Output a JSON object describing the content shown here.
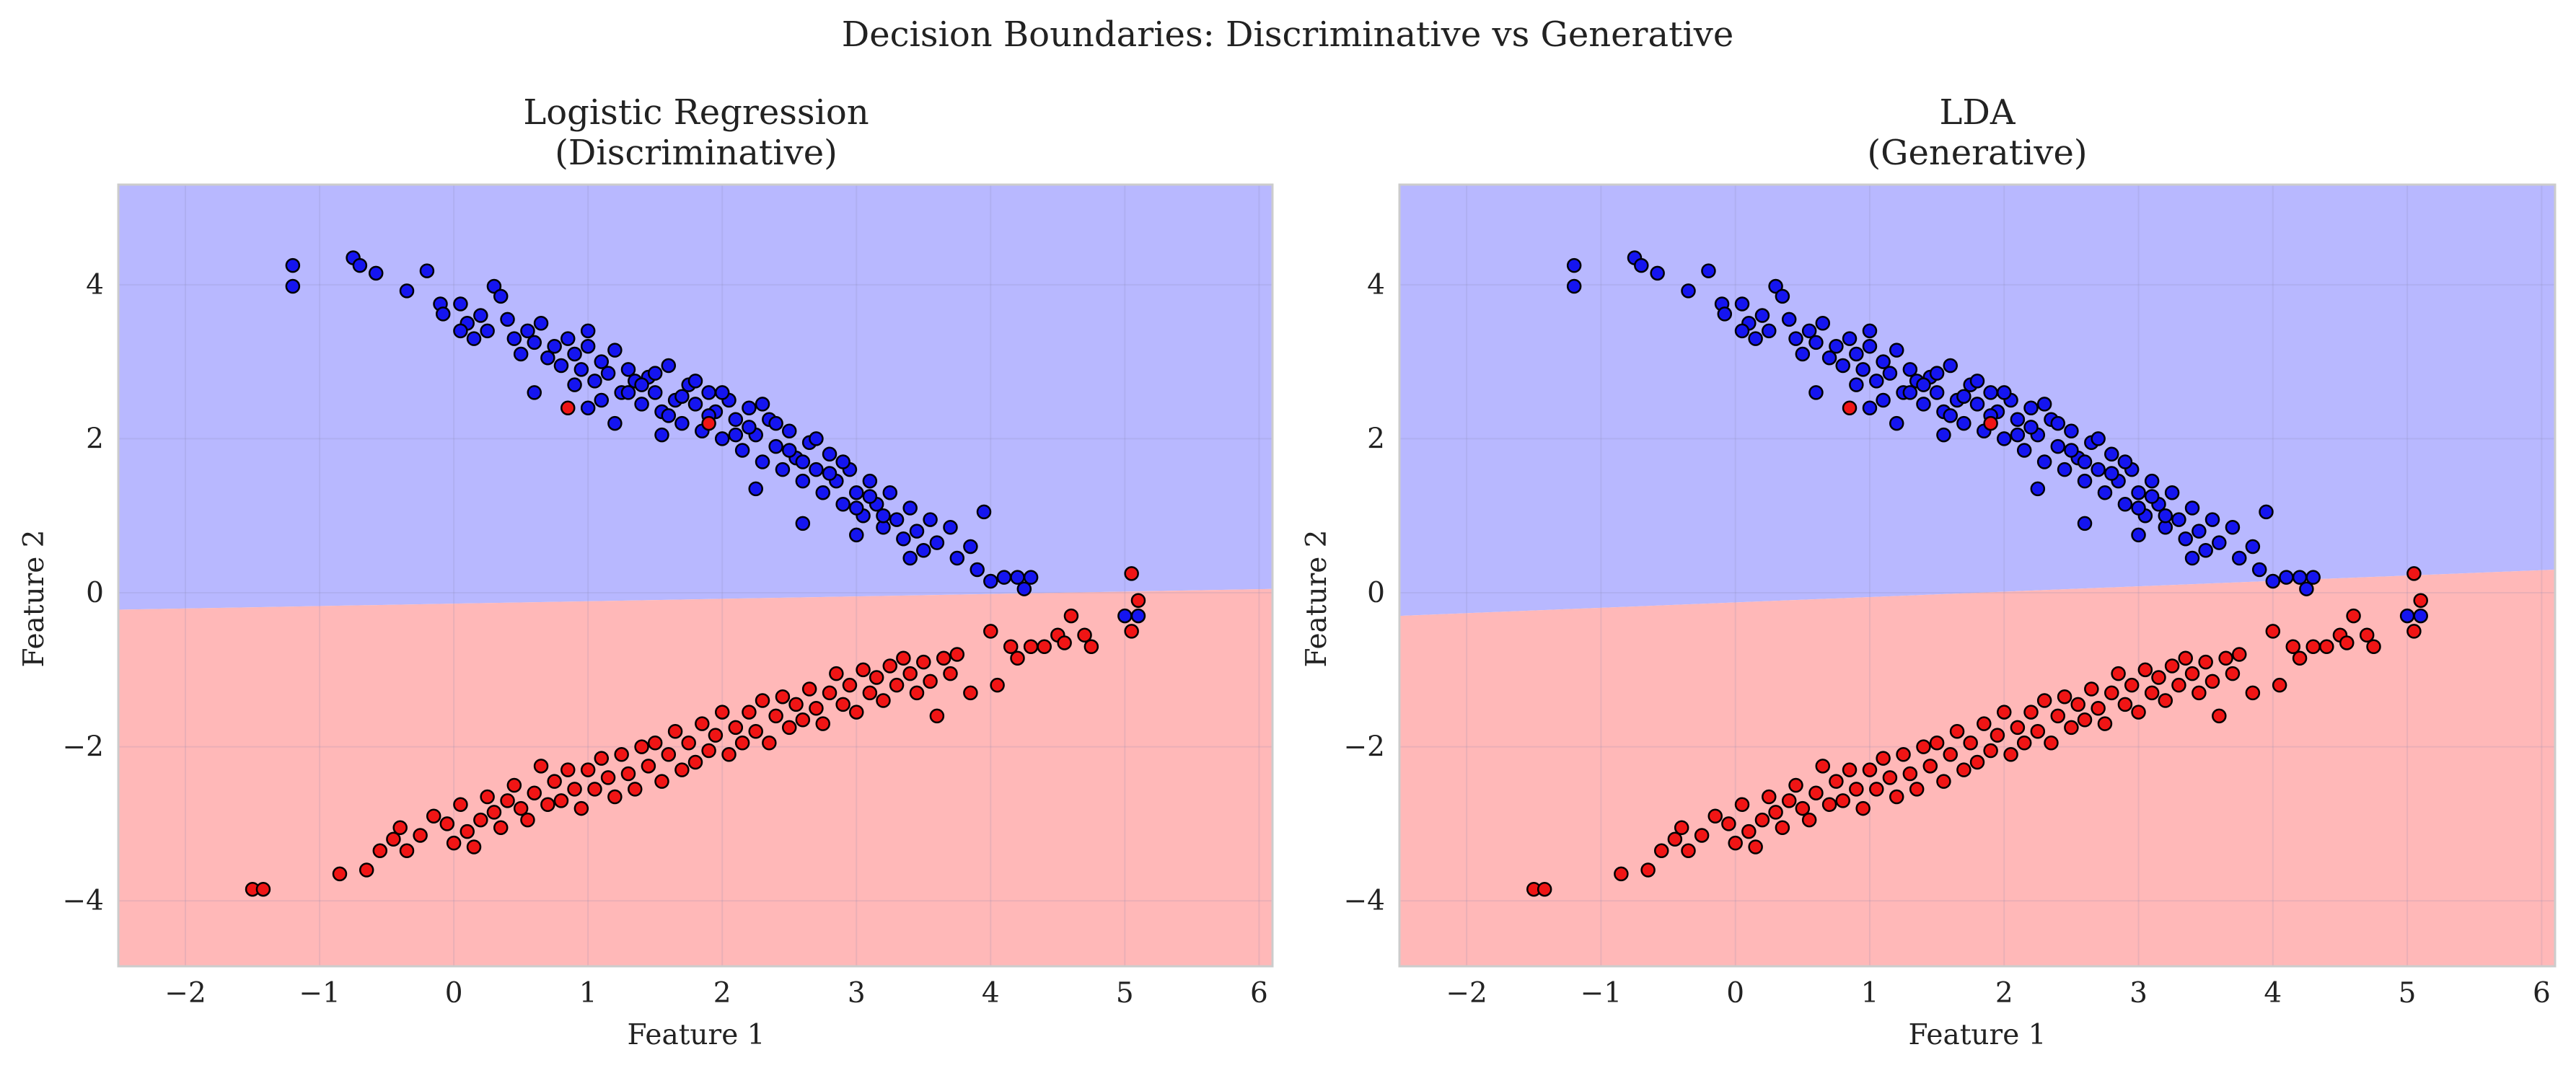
{
  "figure": {
    "suptitle": "Decision Boundaries: Discriminative vs Generative"
  },
  "colors": {
    "region_class0": "#b8b8ff",
    "region_class1": "#ffb8b8",
    "point_class0": "#1515f0",
    "point_class1": "#f01515",
    "point_edge": "#000000",
    "grid": "#d8d8e8",
    "spine": "#cccccc"
  },
  "chart_data": [
    {
      "type": "scatter",
      "title_line1": "Logistic Regression",
      "title_line2": "(Discriminative)",
      "xlabel": "Feature 1",
      "ylabel": "Feature 2",
      "xlim": [
        -2.5,
        6.1
      ],
      "ylim": [
        -4.85,
        5.3
      ],
      "xticks": [
        -2,
        -1,
        0,
        1,
        2,
        3,
        4,
        5,
        6
      ],
      "yticks": [
        -4,
        -2,
        0,
        2,
        4
      ],
      "grid": true,
      "decision_boundary": {
        "x": [
          -2.5,
          6.1
        ],
        "y": [
          -0.22,
          0.05
        ]
      },
      "regions": {
        "above": "class 0 (blue)",
        "below": "class 1 (red)"
      }
    },
    {
      "type": "scatter",
      "title_line1": "LDA",
      "title_line2": "(Generative)",
      "xlabel": "Feature 1",
      "ylabel": "Feature 2",
      "xlim": [
        -2.5,
        6.1
      ],
      "ylim": [
        -4.85,
        5.3
      ],
      "xticks": [
        -2,
        -1,
        0,
        1,
        2,
        3,
        4,
        5,
        6
      ],
      "yticks": [
        -4,
        -2,
        0,
        2,
        4
      ],
      "grid": true,
      "decision_boundary": {
        "x": [
          -2.5,
          6.1
        ],
        "y": [
          -0.3,
          0.3
        ]
      },
      "regions": {
        "above": "class 0 (blue)",
        "below": "class 1 (red)"
      }
    }
  ],
  "points": {
    "class0": [
      [
        -1.2,
        4.25
      ],
      [
        -1.2,
        3.98
      ],
      [
        -0.75,
        4.35
      ],
      [
        -0.7,
        4.25
      ],
      [
        -0.58,
        4.15
      ],
      [
        -0.35,
        3.92
      ],
      [
        -0.2,
        4.18
      ],
      [
        -0.1,
        3.75
      ],
      [
        -0.08,
        3.62
      ],
      [
        0.05,
        3.75
      ],
      [
        0.1,
        3.5
      ],
      [
        0.05,
        3.4
      ],
      [
        0.15,
        3.3
      ],
      [
        0.2,
        3.6
      ],
      [
        0.25,
        3.4
      ],
      [
        0.3,
        3.98
      ],
      [
        0.35,
        3.85
      ],
      [
        0.4,
        3.55
      ],
      [
        0.45,
        3.3
      ],
      [
        0.5,
        3.1
      ],
      [
        0.55,
        3.4
      ],
      [
        0.6,
        3.25
      ],
      [
        0.65,
        3.5
      ],
      [
        0.7,
        3.05
      ],
      [
        0.75,
        3.2
      ],
      [
        0.8,
        2.95
      ],
      [
        0.85,
        3.3
      ],
      [
        0.9,
        3.1
      ],
      [
        0.95,
        2.9
      ],
      [
        1.0,
        3.4
      ],
      [
        1.0,
        3.2
      ],
      [
        1.05,
        2.75
      ],
      [
        1.1,
        3.0
      ],
      [
        1.15,
        2.85
      ],
      [
        1.2,
        3.15
      ],
      [
        1.25,
        2.6
      ],
      [
        1.3,
        2.9
      ],
      [
        1.35,
        2.75
      ],
      [
        1.4,
        2.45
      ],
      [
        1.45,
        2.8
      ],
      [
        1.5,
        2.6
      ],
      [
        1.55,
        2.35
      ],
      [
        1.6,
        2.95
      ],
      [
        1.65,
        2.5
      ],
      [
        1.7,
        2.2
      ],
      [
        1.75,
        2.7
      ],
      [
        1.8,
        2.45
      ],
      [
        1.85,
        2.1
      ],
      [
        1.9,
        2.6
      ],
      [
        1.95,
        2.35
      ],
      [
        2.0,
        2.0
      ],
      [
        2.05,
        2.5
      ],
      [
        2.1,
        2.25
      ],
      [
        2.15,
        1.85
      ],
      [
        2.2,
        2.4
      ],
      [
        2.25,
        2.05
      ],
      [
        2.3,
        1.7
      ],
      [
        2.35,
        2.25
      ],
      [
        2.4,
        1.9
      ],
      [
        2.45,
        1.6
      ],
      [
        2.5,
        2.1
      ],
      [
        2.55,
        1.75
      ],
      [
        2.6,
        1.45
      ],
      [
        2.65,
        1.95
      ],
      [
        2.7,
        1.6
      ],
      [
        2.75,
        1.3
      ],
      [
        2.8,
        1.8
      ],
      [
        2.85,
        1.45
      ],
      [
        2.9,
        1.15
      ],
      [
        2.95,
        1.6
      ],
      [
        3.0,
        1.3
      ],
      [
        3.05,
        1.0
      ],
      [
        3.1,
        1.45
      ],
      [
        3.15,
        1.15
      ],
      [
        3.2,
        0.85
      ],
      [
        3.25,
        1.3
      ],
      [
        3.3,
        0.95
      ],
      [
        3.35,
        0.7
      ],
      [
        3.4,
        1.1
      ],
      [
        3.45,
        0.8
      ],
      [
        3.5,
        0.55
      ],
      [
        3.55,
        0.95
      ],
      [
        3.6,
        0.65
      ],
      [
        3.7,
        0.85
      ],
      [
        3.75,
        0.45
      ],
      [
        3.85,
        0.6
      ],
      [
        3.95,
        1.05
      ],
      [
        3.9,
        0.3
      ],
      [
        4.0,
        0.15
      ],
      [
        4.1,
        0.2
      ],
      [
        4.2,
        0.2
      ],
      [
        4.3,
        0.2
      ],
      [
        4.25,
        0.05
      ],
      [
        5.0,
        -0.3
      ],
      [
        5.1,
        -0.3
      ],
      [
        1.3,
        2.6
      ],
      [
        1.4,
        2.7
      ],
      [
        1.5,
        2.85
      ],
      [
        1.6,
        2.3
      ],
      [
        1.7,
        2.55
      ],
      [
        1.8,
        2.75
      ],
      [
        1.9,
        2.3
      ],
      [
        2.0,
        2.6
      ],
      [
        2.1,
        2.05
      ],
      [
        2.2,
        2.15
      ],
      [
        2.3,
        2.45
      ],
      [
        2.4,
        2.2
      ],
      [
        2.5,
        1.85
      ],
      [
        2.6,
        1.7
      ],
      [
        2.7,
        2.0
      ],
      [
        2.8,
        1.55
      ],
      [
        2.9,
        1.7
      ],
      [
        3.0,
        1.1
      ],
      [
        3.1,
        1.25
      ],
      [
        3.2,
        1.0
      ],
      [
        0.6,
        2.6
      ],
      [
        1.0,
        2.4
      ],
      [
        1.2,
        2.2
      ],
      [
        2.6,
        0.9
      ],
      [
        3.0,
        0.75
      ],
      [
        0.9,
        2.7
      ],
      [
        1.1,
        2.5
      ],
      [
        1.55,
        2.05
      ],
      [
        2.25,
        1.35
      ],
      [
        3.4,
        0.45
      ]
    ],
    "class1": [
      [
        -1.5,
        -3.85
      ],
      [
        -1.42,
        -3.85
      ],
      [
        -0.85,
        -3.65
      ],
      [
        -0.65,
        -3.6
      ],
      [
        -0.55,
        -3.35
      ],
      [
        -0.45,
        -3.2
      ],
      [
        -0.4,
        -3.05
      ],
      [
        -0.35,
        -3.35
      ],
      [
        -0.25,
        -3.15
      ],
      [
        -0.15,
        -2.9
      ],
      [
        -0.05,
        -3.0
      ],
      [
        0.0,
        -3.25
      ],
      [
        0.05,
        -2.75
      ],
      [
        0.1,
        -3.1
      ],
      [
        0.15,
        -3.3
      ],
      [
        0.2,
        -2.95
      ],
      [
        0.25,
        -2.65
      ],
      [
        0.3,
        -2.85
      ],
      [
        0.35,
        -3.05
      ],
      [
        0.4,
        -2.7
      ],
      [
        0.45,
        -2.5
      ],
      [
        0.5,
        -2.8
      ],
      [
        0.55,
        -2.95
      ],
      [
        0.6,
        -2.6
      ],
      [
        0.65,
        -2.25
      ],
      [
        0.7,
        -2.75
      ],
      [
        0.75,
        -2.45
      ],
      [
        0.8,
        -2.7
      ],
      [
        0.85,
        -2.3
      ],
      [
        0.9,
        -2.55
      ],
      [
        0.95,
        -2.8
      ],
      [
        1.0,
        -2.3
      ],
      [
        1.05,
        -2.55
      ],
      [
        1.1,
        -2.15
      ],
      [
        1.15,
        -2.4
      ],
      [
        1.2,
        -2.65
      ],
      [
        1.25,
        -2.1
      ],
      [
        1.3,
        -2.35
      ],
      [
        1.35,
        -2.55
      ],
      [
        1.4,
        -2.0
      ],
      [
        1.45,
        -2.25
      ],
      [
        1.5,
        -1.95
      ],
      [
        1.55,
        -2.45
      ],
      [
        1.6,
        -2.1
      ],
      [
        1.65,
        -1.8
      ],
      [
        1.7,
        -2.3
      ],
      [
        1.75,
        -1.95
      ],
      [
        1.8,
        -2.2
      ],
      [
        1.85,
        -1.7
      ],
      [
        1.9,
        -2.05
      ],
      [
        1.95,
        -1.85
      ],
      [
        2.0,
        -1.55
      ],
      [
        2.05,
        -2.1
      ],
      [
        2.1,
        -1.75
      ],
      [
        2.15,
        -1.95
      ],
      [
        2.2,
        -1.55
      ],
      [
        2.25,
        -1.8
      ],
      [
        2.3,
        -1.4
      ],
      [
        2.35,
        -1.95
      ],
      [
        2.4,
        -1.6
      ],
      [
        2.45,
        -1.35
      ],
      [
        2.5,
        -1.75
      ],
      [
        2.55,
        -1.45
      ],
      [
        2.6,
        -1.65
      ],
      [
        2.65,
        -1.25
      ],
      [
        2.7,
        -1.5
      ],
      [
        2.75,
        -1.7
      ],
      [
        2.8,
        -1.3
      ],
      [
        2.85,
        -1.05
      ],
      [
        2.9,
        -1.45
      ],
      [
        2.95,
        -1.2
      ],
      [
        3.0,
        -1.55
      ],
      [
        3.05,
        -1.0
      ],
      [
        3.1,
        -1.3
      ],
      [
        3.15,
        -1.1
      ],
      [
        3.2,
        -1.4
      ],
      [
        3.25,
        -0.95
      ],
      [
        3.3,
        -1.2
      ],
      [
        3.35,
        -0.85
      ],
      [
        3.4,
        -1.05
      ],
      [
        3.45,
        -1.3
      ],
      [
        3.5,
        -0.9
      ],
      [
        3.55,
        -1.15
      ],
      [
        3.6,
        -1.6
      ],
      [
        3.65,
        -0.85
      ],
      [
        3.7,
        -1.05
      ],
      [
        3.75,
        -0.8
      ],
      [
        3.85,
        -1.3
      ],
      [
        4.0,
        -0.5
      ],
      [
        4.05,
        -1.2
      ],
      [
        4.15,
        -0.7
      ],
      [
        4.2,
        -0.85
      ],
      [
        4.3,
        -0.7
      ],
      [
        4.4,
        -0.7
      ],
      [
        4.5,
        -0.55
      ],
      [
        4.55,
        -0.65
      ],
      [
        4.6,
        -0.3
      ],
      [
        4.7,
        -0.55
      ],
      [
        4.75,
        -0.7
      ],
      [
        5.05,
        0.25
      ],
      [
        5.05,
        -0.5
      ],
      [
        5.1,
        -0.1
      ],
      [
        1.9,
        2.2
      ],
      [
        0.85,
        2.4
      ]
    ]
  }
}
